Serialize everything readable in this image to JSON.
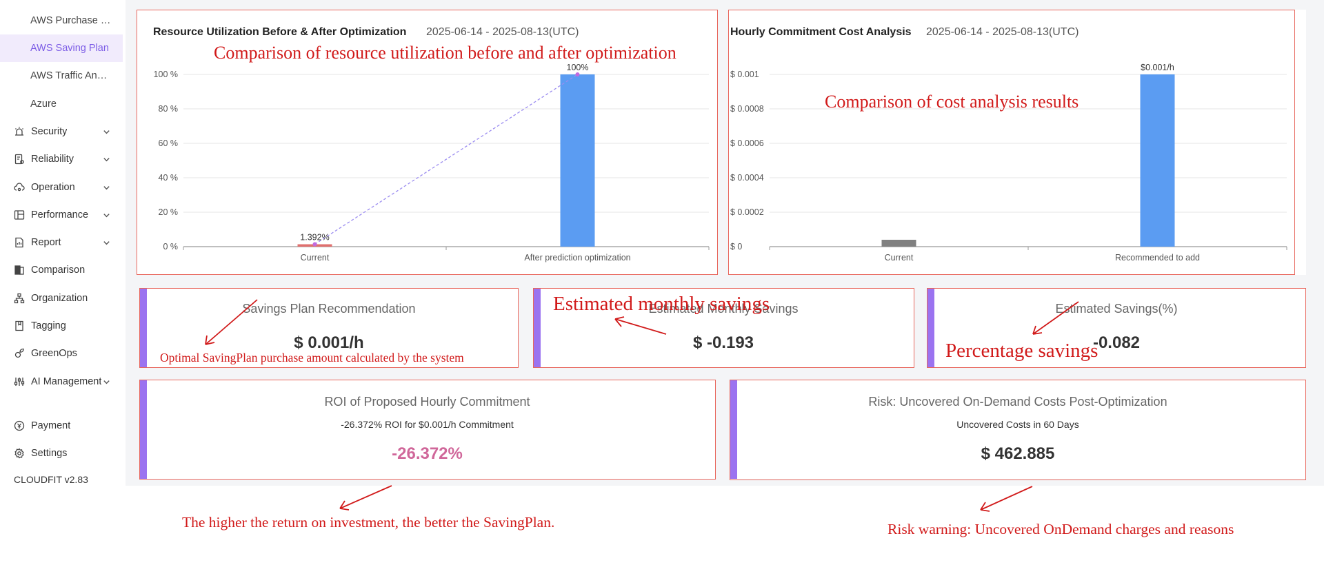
{
  "sidebar": {
    "sub_items": [
      {
        "label": "AWS Purchase Recommendation"
      },
      {
        "label": "AWS Saving Plan",
        "active": true
      },
      {
        "label": "AWS Traffic Analysis"
      },
      {
        "label": "Azure"
      }
    ],
    "sections": [
      {
        "label": "Security",
        "icon": "alarm-icon",
        "expandable": true
      },
      {
        "label": "Reliability",
        "icon": "document-settings-icon",
        "expandable": true
      },
      {
        "label": "Operation",
        "icon": "cloud-gear-icon",
        "expandable": true
      },
      {
        "label": "Performance",
        "icon": "grid-window-icon",
        "expandable": true
      },
      {
        "label": "Report",
        "icon": "report-icon",
        "expandable": true
      },
      {
        "label": "Comparison",
        "icon": "compare-icon",
        "expandable": false
      },
      {
        "label": "Organization",
        "icon": "organization-icon",
        "expandable": false
      },
      {
        "label": "Tagging",
        "icon": "tag-book-icon",
        "expandable": false
      },
      {
        "label": "GreenOps",
        "icon": "leaf-gear-icon",
        "expandable": false
      },
      {
        "label": "AI Management",
        "icon": "sliders-icon",
        "expandable": true
      }
    ],
    "bottom_items": [
      {
        "label": "Payment",
        "icon": "currency-icon"
      },
      {
        "label": "Settings",
        "icon": "gear-icon"
      }
    ],
    "version": "CLOUDFIT v2.83"
  },
  "utilization_chart": {
    "title": "Resource Utilization Before & After Optimization",
    "date_range": "2025-06-14 - 2025-08-13(UTC)",
    "chart_data": {
      "type": "bar",
      "categories": [
        "Current",
        "After prediction optimization"
      ],
      "values": [
        1.392,
        100
      ],
      "data_labels": [
        "1.392%",
        "100%"
      ],
      "yticks": [
        "0 %",
        "20 %",
        "40 %",
        "60 %",
        "80 %",
        "100 %"
      ],
      "ylim": [
        0,
        100
      ],
      "bar_colors": [
        "#e0706e",
        "#5b9cf2"
      ],
      "trend_line": true,
      "grid": true
    }
  },
  "cost_chart": {
    "title": "Hourly Commitment Cost Analysis",
    "date_range": "2025-06-14 - 2025-08-13(UTC)",
    "chart_data": {
      "type": "bar",
      "categories": [
        "Current",
        "Recommended to add"
      ],
      "values": [
        4e-05,
        0.001
      ],
      "data_labels": [
        "",
        "$0.001/h"
      ],
      "yticks": [
        "$ 0",
        "$ 0.0002",
        "$ 0.0004",
        "$ 0.0006",
        "$ 0.0008",
        "$ 0.001"
      ],
      "ylim": [
        0,
        0.001
      ],
      "bar_colors": [
        "#808080",
        "#5b9cf2"
      ],
      "grid": true
    }
  },
  "metrics": {
    "savings_plan": {
      "title": "Savings Plan Recommendation",
      "value": "$ 0.001/h"
    },
    "monthly_savings": {
      "title": "Estimated Monthly Savings",
      "value": "$ -0.193"
    },
    "savings_pct": {
      "title": "Estimated Savings(%)",
      "value": "-0.082"
    },
    "roi": {
      "title": "ROI of Proposed Hourly Commitment",
      "subtitle": "-26.372% ROI for $0.001/h Commitment",
      "value": "-26.372%"
    },
    "risk": {
      "title": "Risk: Uncovered On-Demand Costs Post-Optimization",
      "subtitle": "Uncovered Costs in 60 Days",
      "value": "$ 462.885"
    }
  },
  "annotations": {
    "utilization": "Comparison of resource utilization before and after optimization",
    "cost": "Comparison of cost analysis results",
    "monthly": "Estimated monthly savings",
    "optimal": "Optimal SavingPlan purchase amount calculated by the system",
    "percentage": "Percentage savings",
    "roi": "The higher the return on investment, the better the SavingPlan.",
    "risk": "Risk warning: Uncovered OnDemand charges and reasons"
  },
  "colors": {
    "accent": "#9b73f0",
    "annotation": "#d11a1a",
    "box": "#e8665c",
    "roi_value": "#d0679a"
  }
}
